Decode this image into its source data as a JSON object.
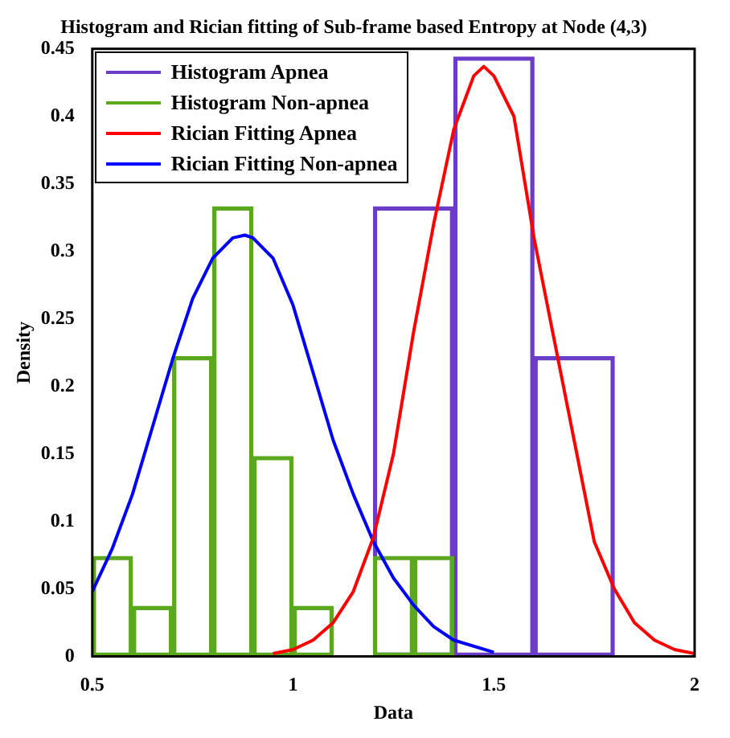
{
  "chart_data": {
    "type": "bar",
    "title": "Histogram and Rician fitting of Sub-frame based Entropy at Node (4,3)",
    "xlabel": "Data",
    "ylabel": "Density",
    "xlim": [
      0.5,
      2
    ],
    "xticks": [
      0.5,
      1,
      1.5,
      2
    ],
    "ylim": [
      0,
      0.45
    ],
    "yticks": [
      0,
      0.05,
      0.1,
      0.15,
      0.2,
      0.25,
      0.3,
      0.35,
      0.4,
      0.45
    ],
    "legend": "top left",
    "series": [
      {
        "name": "Histogram Apnea",
        "color": "#6a3cc8",
        "x": [
          1.3,
          1.5,
          1.7
        ],
        "values": [
          0.333,
          0.444,
          0.222
        ]
      },
      {
        "name": "Histogram Non-apnea",
        "color": "#5aa81e",
        "x": [
          0.55,
          0.65,
          0.75,
          0.85,
          0.95,
          1.05,
          1.15,
          1.25,
          1.35
        ],
        "values": [
          0.074,
          0.037,
          0.222,
          0.333,
          0.148,
          0.037,
          0,
          0.074,
          0.074
        ]
      },
      {
        "name": "Rician Fitting Apnea",
        "type": "line",
        "color": "#ff0000",
        "x": [
          0.95,
          1.0,
          1.05,
          1.1,
          1.15,
          1.2,
          1.25,
          1.3,
          1.35,
          1.4,
          1.45,
          1.475,
          1.5,
          1.55,
          1.6,
          1.65,
          1.7,
          1.75,
          1.8,
          1.85,
          1.9,
          1.95,
          2.0
        ],
        "values": [
          0.002,
          0.005,
          0.012,
          0.025,
          0.048,
          0.088,
          0.15,
          0.24,
          0.32,
          0.39,
          0.43,
          0.437,
          0.43,
          0.4,
          0.31,
          0.235,
          0.16,
          0.085,
          0.05,
          0.025,
          0.012,
          0.005,
          0.002
        ]
      },
      {
        "name": "Rician Fitting Non-apnea",
        "type": "line",
        "color": "#0000ff",
        "x": [
          0.5,
          0.55,
          0.6,
          0.65,
          0.7,
          0.75,
          0.8,
          0.85,
          0.88,
          0.9,
          0.95,
          1.0,
          1.05,
          1.1,
          1.15,
          1.2,
          1.25,
          1.3,
          1.35,
          1.4,
          1.5
        ],
        "values": [
          0.048,
          0.08,
          0.12,
          0.17,
          0.22,
          0.265,
          0.295,
          0.31,
          0.312,
          0.31,
          0.295,
          0.26,
          0.21,
          0.16,
          0.12,
          0.085,
          0.058,
          0.038,
          0.022,
          0.012,
          0.003
        ]
      }
    ]
  }
}
